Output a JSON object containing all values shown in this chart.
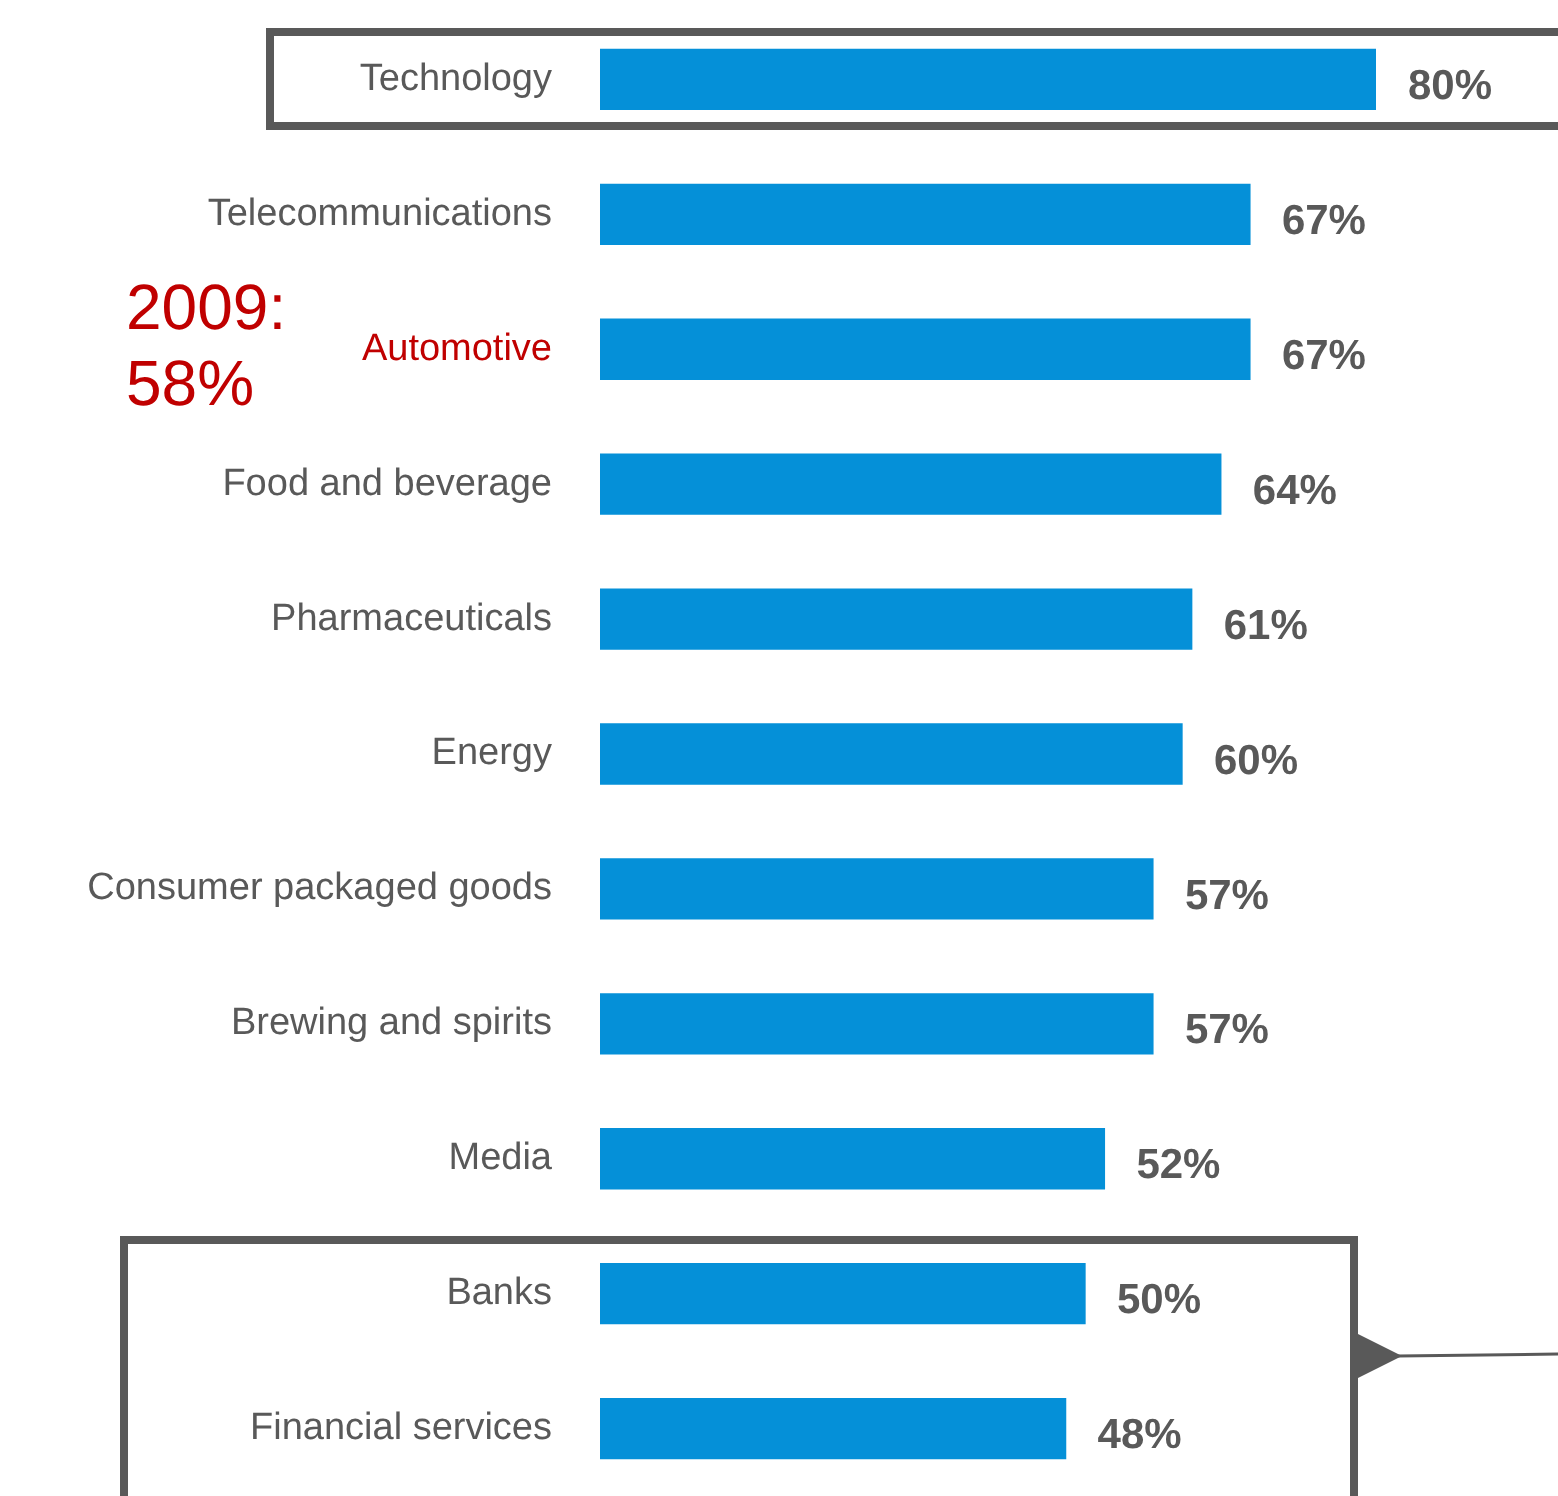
{
  "chart_data": {
    "type": "bar",
    "orientation": "horizontal",
    "categories": [
      "Technology",
      "Telecommunications",
      "Automotive",
      "Food and beverage",
      "Pharmaceuticals",
      "Energy",
      "Consumer packaged goods",
      "Brewing and spirits",
      "Media",
      "Banks",
      "Financial services"
    ],
    "values": [
      80,
      67,
      67,
      64,
      61,
      60,
      57,
      57,
      52,
      50,
      48
    ],
    "value_labels": [
      "80%",
      "67%",
      "67%",
      "64%",
      "61%",
      "60%",
      "57%",
      "57%",
      "52%",
      "50%",
      "48%"
    ],
    "color": "#0590d8",
    "annotations": [
      "2009: 58%"
    ],
    "grid": false,
    "legend": false
  }
}
